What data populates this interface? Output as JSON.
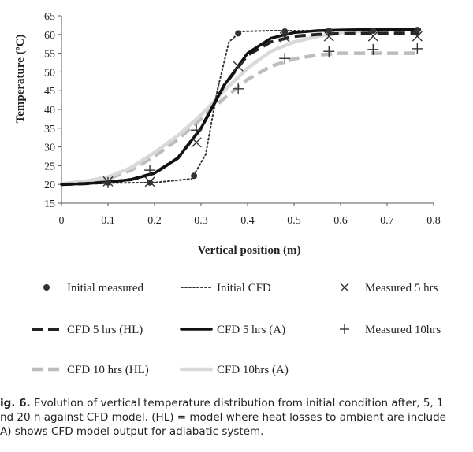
{
  "chart_data": {
    "type": "line",
    "xlabel": "Vertical position (m)",
    "ylabel": "Temperature (ºC)",
    "xlim": [
      0,
      0.8
    ],
    "ylim": [
      15,
      65
    ],
    "xticks": [
      "0",
      "0.1",
      "0.2",
      "0.3",
      "0.4",
      "0.5",
      "0.6",
      "0.7",
      "0.8"
    ],
    "yticks": [
      "15",
      "20",
      "25",
      "30",
      "35",
      "40",
      "45",
      "50",
      "55",
      "60",
      "65"
    ],
    "grid": false,
    "legend_position": "bottom",
    "series": [
      {
        "name": "Initial measured",
        "kind": "marker-dot",
        "color": "#333333",
        "x": [
          0.1,
          0.19,
          0.285,
          0.38,
          0.48,
          0.575,
          0.67,
          0.765
        ],
        "y": [
          20.5,
          20.5,
          22.3,
          60.3,
          60.8,
          61.0,
          61.0,
          61.2
        ]
      },
      {
        "name": "Initial CFD",
        "kind": "line-dotted",
        "color": "#333333",
        "x": [
          0,
          0.2,
          0.28,
          0.31,
          0.335,
          0.36,
          0.385,
          0.45,
          0.6,
          0.77
        ],
        "y": [
          20.2,
          20.5,
          21.5,
          28,
          45,
          58,
          60.8,
          61,
          61,
          61
        ]
      },
      {
        "name": "Measured 5 hrs",
        "kind": "marker-x",
        "color": "#333333",
        "x": [
          0.1,
          0.19,
          0.29,
          0.38,
          0.48,
          0.575,
          0.67,
          0.765
        ],
        "y": [
          20.8,
          20.7,
          31.2,
          51.5,
          59.3,
          59.5,
          59.5,
          59.5
        ]
      },
      {
        "name": "CFD 5 hrs (HL)",
        "kind": "line-dashed",
        "color": "#222222",
        "x": [
          0,
          0.05,
          0.1,
          0.15,
          0.2,
          0.25,
          0.3,
          0.35,
          0.4,
          0.45,
          0.5,
          0.55,
          0.6,
          0.65,
          0.7,
          0.77
        ],
        "y": [
          20,
          20.2,
          20.6,
          21.3,
          23,
          27,
          35,
          46.5,
          54.5,
          58,
          59.5,
          60,
          60.2,
          60.3,
          60.3,
          60.4
        ]
      },
      {
        "name": "CFD 5 hrs (A)",
        "kind": "line-solid",
        "color": "#111111",
        "x": [
          0,
          0.05,
          0.1,
          0.15,
          0.2,
          0.25,
          0.3,
          0.35,
          0.4,
          0.45,
          0.5,
          0.55,
          0.6,
          0.65,
          0.7,
          0.77
        ],
        "y": [
          20,
          20.2,
          20.6,
          21.3,
          23,
          27,
          35,
          46.5,
          55,
          59,
          60.5,
          61,
          61.2,
          61.3,
          61.3,
          61.3
        ]
      },
      {
        "name": "Measured 10hrs",
        "kind": "marker-plus",
        "color": "#333333",
        "x": [
          0.1,
          0.19,
          0.29,
          0.38,
          0.48,
          0.575,
          0.67,
          0.765
        ],
        "y": [
          20.5,
          23.8,
          34.5,
          45.5,
          53.6,
          55.5,
          56.0,
          56.2
        ]
      },
      {
        "name": "CFD 10 hrs (HL)",
        "kind": "line-dashed-thick",
        "color": "#bdbdbd",
        "x": [
          0,
          0.05,
          0.1,
          0.15,
          0.2,
          0.25,
          0.3,
          0.35,
          0.4,
          0.45,
          0.5,
          0.55,
          0.6,
          0.65,
          0.7,
          0.77
        ],
        "y": [
          20,
          20.5,
          21.5,
          23.8,
          27.5,
          32,
          37.5,
          43,
          48,
          51.5,
          53.5,
          54.5,
          55,
          55,
          55,
          55
        ]
      },
      {
        "name": "CFD 10hrs (A)",
        "kind": "line-solid-thick",
        "color": "#d9d9d9",
        "x": [
          0,
          0.05,
          0.1,
          0.15,
          0.2,
          0.25,
          0.3,
          0.35,
          0.4,
          0.45,
          0.5,
          0.55,
          0.6,
          0.65,
          0.7,
          0.77
        ],
        "y": [
          20.2,
          20.8,
          22,
          24.5,
          28.5,
          33,
          38.5,
          45,
          51,
          55.5,
          58,
          59.5,
          60.5,
          61,
          61.2,
          61.3
        ]
      }
    ]
  },
  "caption": {
    "label": "ig. 6.",
    "line1": " Evolution of vertical temperature distribution from initial condition after, 5, 1",
    "line2": "nd 20 h against CFD model. (HL) = model where heat losses to ambient are include",
    "line3": "A) shows CFD model output for adiabatic system."
  }
}
